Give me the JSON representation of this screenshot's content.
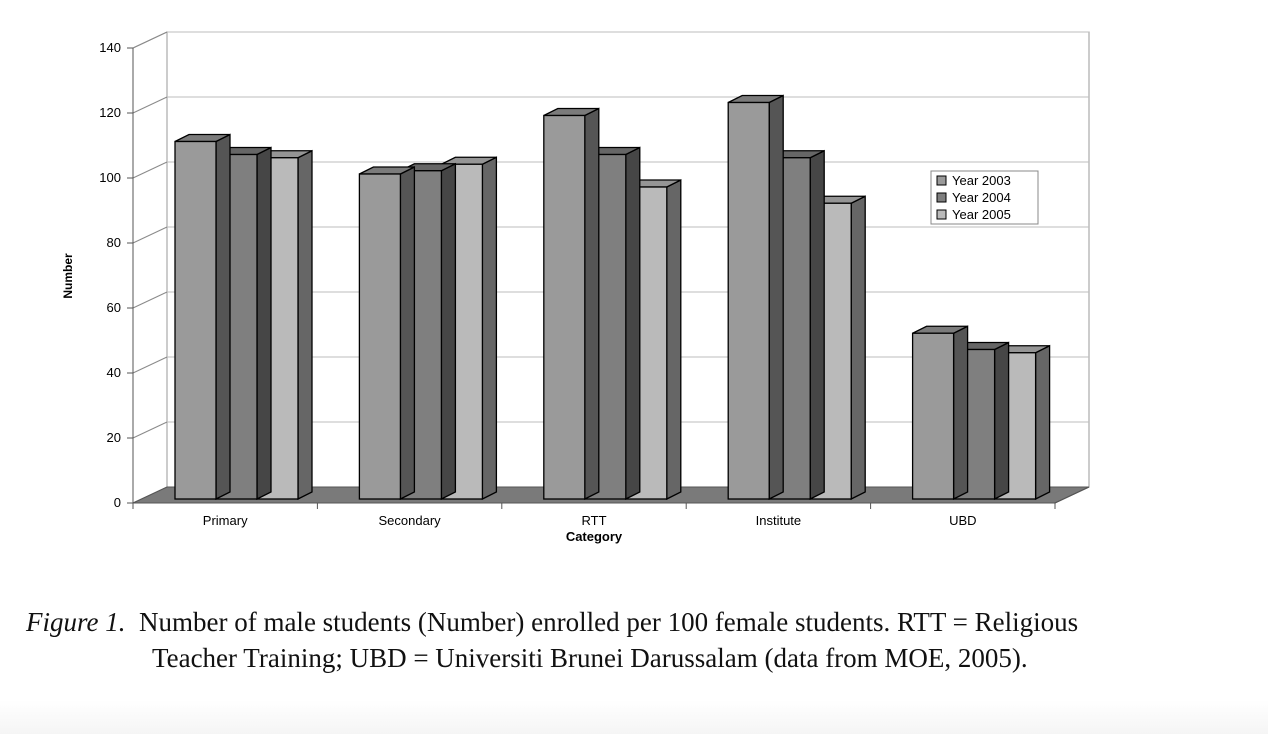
{
  "chart_data": {
    "type": "bar",
    "categories": [
      "Primary",
      "Secondary",
      "RTT",
      "Institute",
      "UBD"
    ],
    "series": [
      {
        "name": "Year 2003",
        "values": [
          110,
          100,
          118,
          122,
          51
        ],
        "color": "#9a9a9a"
      },
      {
        "name": "Year 2004",
        "values": [
          106,
          101,
          106,
          105,
          46
        ],
        "color": "#7f7f7f"
      },
      {
        "name": "Year 2005",
        "values": [
          105,
          103,
          96,
          91,
          45
        ],
        "color": "#bababa"
      }
    ],
    "title": "",
    "xlabel": "Category",
    "ylabel": "Number",
    "ylim": [
      0,
      140
    ],
    "yticks": [
      0,
      20,
      40,
      60,
      80,
      100,
      120,
      140
    ],
    "grid": true,
    "legend_position": "right",
    "style": "3d"
  },
  "caption": {
    "label": "Figure 1.",
    "line1": "Number of male students (Number) enrolled per 100 female students. RTT = Religious",
    "line2": "Teacher Training; UBD = Universiti Brunei Darussalam (data from MOE, 2005)."
  }
}
